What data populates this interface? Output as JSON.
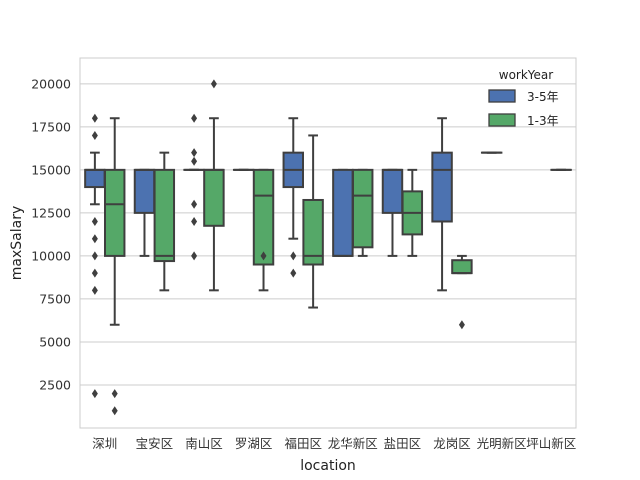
{
  "chart_data": {
    "type": "box",
    "xlabel": "location",
    "ylabel": "maxSalary",
    "ylim": [
      0,
      21500
    ],
    "yticks": [
      2500,
      5000,
      7500,
      10000,
      12500,
      15000,
      17500,
      20000
    ],
    "ytick_labels": [
      "2500",
      "5000",
      "7500",
      "10000",
      "12500",
      "15000",
      "17500",
      "20000"
    ],
    "categories": [
      "深圳",
      "宝安区",
      "南山区",
      "罗湖区",
      "福田区",
      "龙华新区",
      "盐田区",
      "龙岗区",
      "光明新区",
      "坪山新区"
    ],
    "grid": "horizontal",
    "legend": {
      "title": "workYear",
      "placement": "top-right"
    },
    "series": [
      {
        "name": "3-5年",
        "color": "#4c72b0",
        "boxes": [
          {
            "min": 13000,
            "q1": 14000,
            "median": 15000,
            "q3": 15000,
            "max": 16000,
            "outliers": [
              18000,
              17000,
              12000,
              11000,
              10000,
              9000,
              8000,
              2000
            ]
          },
          {
            "min": 10000,
            "q1": 12500,
            "median": 15000,
            "q3": 15000,
            "max": 15000,
            "outliers": []
          },
          {
            "min": 15000,
            "q1": 15000,
            "median": 15000,
            "q3": 15000,
            "max": 15000,
            "outliers": [
              18000,
              16000,
              15500,
              13000,
              12000,
              10000
            ]
          },
          {
            "min": 15000,
            "q1": 15000,
            "median": 15000,
            "q3": 15000,
            "max": 15000,
            "outliers": []
          },
          {
            "min": 11000,
            "q1": 14000,
            "median": 15000,
            "q3": 16000,
            "max": 18000,
            "outliers": [
              10000,
              9000
            ]
          },
          {
            "min": 10000,
            "q1": 10000,
            "median": 10000,
            "q3": 15000,
            "max": 15000,
            "outliers": []
          },
          {
            "min": 10000,
            "q1": 12500,
            "median": 15000,
            "q3": 15000,
            "max": 15000,
            "outliers": []
          },
          {
            "min": 8000,
            "q1": 12000,
            "median": 15000,
            "q3": 16000,
            "max": 18000,
            "outliers": []
          },
          {
            "min": 16000,
            "q1": 16000,
            "median": 16000,
            "q3": 16000,
            "max": 16000,
            "outliers": []
          },
          null
        ]
      },
      {
        "name": "1-3年",
        "color": "#55a868",
        "boxes": [
          {
            "min": 6000,
            "q1": 10000,
            "median": 13000,
            "q3": 15000,
            "max": 18000,
            "outliers": [
              2000,
              1000
            ]
          },
          {
            "min": 8000,
            "q1": 9700,
            "median": 10000,
            "q3": 15000,
            "max": 16000,
            "outliers": []
          },
          {
            "min": 8000,
            "q1": 11750,
            "median": 15000,
            "q3": 15000,
            "max": 18000,
            "outliers": [
              20000
            ]
          },
          {
            "min": 8000,
            "q1": 9500,
            "median": 13500,
            "q3": 15000,
            "max": 15000,
            "outliers": [
              10000
            ]
          },
          {
            "min": 7000,
            "q1": 9500,
            "median": 10000,
            "q3": 13250,
            "max": 17000,
            "outliers": []
          },
          {
            "min": 10000,
            "q1": 10500,
            "median": 13500,
            "q3": 15000,
            "max": 15000,
            "outliers": []
          },
          {
            "min": 10000,
            "q1": 11250,
            "median": 12500,
            "q3": 13750,
            "max": 15000,
            "outliers": []
          },
          {
            "min": 9000,
            "q1": 9000,
            "median": 9000,
            "q3": 9750,
            "max": 10000,
            "outliers": [
              6000
            ]
          },
          null,
          {
            "min": 15000,
            "q1": 15000,
            "median": 15000,
            "q3": 15000,
            "max": 15000,
            "outliers": []
          }
        ]
      }
    ]
  }
}
